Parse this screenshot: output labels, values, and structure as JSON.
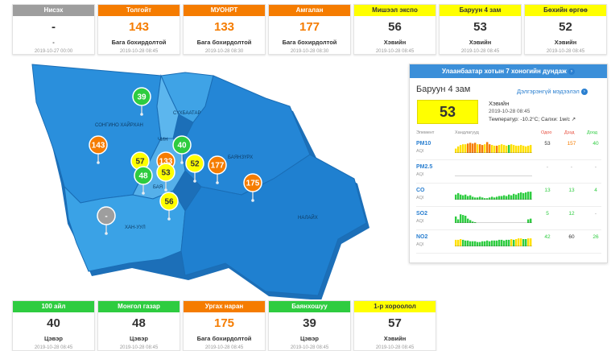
{
  "top_cards": [
    {
      "name": "Нисэх",
      "color": "#9e9e9e",
      "value": "-",
      "level": "-",
      "time": "2019-10-27 00:00"
    },
    {
      "name": "Толгойт",
      "color": "#f57c00",
      "value": "143",
      "level": "Бага бохирдолтой",
      "time": "2019-10-28 08:45"
    },
    {
      "name": "МУОНРТ",
      "color": "#f57c00",
      "value": "133",
      "level": "Бага бохирдолтой",
      "time": "2019-10-28 08:30"
    },
    {
      "name": "Амгалан",
      "color": "#f57c00",
      "value": "177",
      "level": "Бага бохирдолтой",
      "time": "2019-10-28 08:30"
    },
    {
      "name": "Мишээл экспо",
      "color": "#ffff00",
      "value": "56",
      "level": "Хэвийн",
      "time": "2019-10-28 08:45"
    },
    {
      "name": "Баруун 4 зам",
      "color": "#ffff00",
      "value": "53",
      "level": "Хэвийн",
      "time": "2019-10-28 08:45"
    },
    {
      "name": "Бөхийн өргөө",
      "color": "#ffff00",
      "value": "52",
      "level": "Хэвийн",
      "time": "2019-10-28 08:45"
    }
  ],
  "bottom_cards": [
    {
      "name": "100 айл",
      "color": "#2ecc40",
      "value": "40",
      "level": "Цэвэр",
      "time": "2019-10-28 08:45"
    },
    {
      "name": "Монгол газар",
      "color": "#2ecc40",
      "value": "48",
      "level": "Цэвэр",
      "time": "2019-10-28 08:45"
    },
    {
      "name": "Ургах наран",
      "color": "#f57c00",
      "value": "175",
      "level": "Бага бохирдолтой",
      "time": "2019-10-28 08:45"
    },
    {
      "name": "Баянхошуу",
      "color": "#2ecc40",
      "value": "39",
      "level": "Цэвэр",
      "time": "2019-10-28 08:45"
    },
    {
      "name": "1-р хороолол",
      "color": "#ffff00",
      "value": "57",
      "level": "Хэвийн",
      "time": "2019-10-28 08:45"
    }
  ],
  "map": {
    "districts": {
      "songino": "СОНГИНО ХАЙРХАН",
      "chin": "ЧИН",
      "sukh": "СҮХБААТАР",
      "bayanzurkh": "БАЯНЗҮРХ",
      "khan_uul": "ХАН-УУЛ",
      "nalaikh": "НАЛАЙХ",
      "bayangol": "БАЯ"
    },
    "pins": [
      {
        "value": "39",
        "color": "#2ecc40"
      },
      {
        "value": "143",
        "color": "#f57c00"
      },
      {
        "value": "57",
        "color": "#ffff00"
      },
      {
        "value": "133",
        "color": "#f57c00"
      },
      {
        "value": "40",
        "color": "#2ecc40"
      },
      {
        "value": "48",
        "color": "#2ecc40"
      },
      {
        "value": "53",
        "color": "#ffff00"
      },
      {
        "value": "52",
        "color": "#ffff00"
      },
      {
        "value": "177",
        "color": "#f57c00"
      },
      {
        "value": "175",
        "color": "#f57c00"
      },
      {
        "value": "56",
        "color": "#ffff00"
      },
      {
        "value": "-",
        "color": "#9e9e9e"
      }
    ]
  },
  "panel": {
    "title": "Улаанбаатар хотын 7 хоногийн дундаж",
    "station": "Баруун 4 зам",
    "detail_link": "Дэлгэрэнгүй мэдээлэл",
    "aqi": "53",
    "level": "Хэвийн",
    "time": "2019-10-28 08:45",
    "weather": "Температур: -10.2°C; Салхи: 1м/с",
    "col_element": "Элемент",
    "col_trend": "Хандлагууд",
    "col_now": "Одоо",
    "col_max": "Дээд",
    "col_min": "Доод",
    "pollutants": [
      {
        "name": "PM10",
        "unit": "AQI",
        "now": "53",
        "max": "157",
        "min": "40",
        "now_color": "#333",
        "max_color": "#f57c00",
        "min_color": "#2ecc40",
        "bars": [
          0.3,
          0.45,
          0.55,
          0.6,
          0.6,
          0.65,
          0.7,
          0.65,
          0.7,
          0.6,
          0.6,
          0.55,
          0.6,
          0.75,
          0.6,
          0.55,
          0.5,
          0.5,
          0.55,
          0.6,
          0.55,
          0.5,
          0.55,
          0.6,
          0.55,
          0.5,
          0.5,
          0.55,
          0.5,
          0.45,
          0.5,
          0.55
        ],
        "bar_colors": [
          "#ffe000",
          "#ffe000",
          "#ffe000",
          "#ffe000",
          "#ffe000",
          "#f57c00",
          "#f57c00",
          "#f57c00",
          "#f57c00",
          "#ffe000",
          "#f57c00",
          "#f57c00",
          "#ffe000",
          "#f57c00",
          "#f57c00",
          "#ffe000",
          "#ffe000",
          "#f57c00",
          "#ffe000",
          "#ffe000",
          "#ffe000",
          "#ffe000",
          "#2ecc40",
          "#ffe000",
          "#ffe000",
          "#ffe000",
          "#ffe000",
          "#ffe000",
          "#ffe000",
          "#ffe000",
          "#ffe000",
          "#ffe000"
        ]
      },
      {
        "name": "PM2.5",
        "unit": "AQI",
        "now": "-",
        "max": "-",
        "min": "-",
        "now_color": "#999",
        "max_color": "#999",
        "min_color": "#999",
        "bars": [],
        "bar_colors": []
      },
      {
        "name": "CO",
        "unit": "AQI",
        "now": "13",
        "max": "13",
        "min": "4",
        "now_color": "#2ecc40",
        "max_color": "#2ecc40",
        "min_color": "#2ecc40",
        "bars": [
          0.35,
          0.45,
          0.35,
          0.3,
          0.35,
          0.25,
          0.3,
          0.2,
          0.15,
          0.15,
          0.2,
          0.15,
          0.1,
          0.1,
          0.15,
          0.2,
          0.15,
          0.2,
          0.25,
          0.25,
          0.3,
          0.25,
          0.35,
          0.3,
          0.4,
          0.35,
          0.45,
          0.5,
          0.45,
          0.5,
          0.55,
          0.55
        ],
        "bar_colors": [
          "#2ecc40"
        ]
      },
      {
        "name": "SO2",
        "unit": "AQI",
        "now": "5",
        "max": "12",
        "min": "-",
        "now_color": "#2ecc40",
        "max_color": "#2ecc40",
        "min_color": "#999",
        "bars": [
          0.45,
          0.25,
          0.6,
          0.55,
          0.5,
          0.3,
          0.2,
          0.1,
          0.05,
          0,
          0,
          0,
          0,
          0,
          0,
          0,
          0,
          0,
          0,
          0,
          0,
          0,
          0,
          0,
          0,
          0,
          0,
          0,
          0,
          0,
          0.25,
          0.3
        ],
        "bar_colors": [
          "#2ecc40"
        ]
      },
      {
        "name": "NO2",
        "unit": "AQI",
        "now": "42",
        "max": "60",
        "min": "26",
        "now_color": "#2ecc40",
        "max_color": "#333",
        "min_color": "#2ecc40",
        "bars": [
          0.45,
          0.45,
          0.5,
          0.45,
          0.4,
          0.4,
          0.35,
          0.35,
          0.35,
          0.3,
          0.3,
          0.35,
          0.35,
          0.4,
          0.35,
          0.4,
          0.4,
          0.4,
          0.45,
          0.45,
          0.4,
          0.45,
          0.45,
          0.5,
          0.45,
          0.5,
          0.55,
          0.55,
          0.5,
          0.5,
          0.55,
          0.55
        ],
        "bar_colors": [
          "#ffe000",
          "#ffe000",
          "#ffe000",
          "#2ecc40",
          "#2ecc40",
          "#2ecc40",
          "#2ecc40",
          "#2ecc40",
          "#2ecc40",
          "#2ecc40",
          "#2ecc40",
          "#2ecc40",
          "#2ecc40",
          "#2ecc40",
          "#2ecc40",
          "#2ecc40",
          "#2ecc40",
          "#2ecc40",
          "#2ecc40",
          "#2ecc40",
          "#2ecc40",
          "#2ecc40",
          "#2ecc40",
          "#ffe000",
          "#2ecc40",
          "#ffe000",
          "#ffe000",
          "#ffe000",
          "#2ecc40",
          "#2ecc40",
          "#ffe000",
          "#ffe000"
        ]
      }
    ]
  }
}
